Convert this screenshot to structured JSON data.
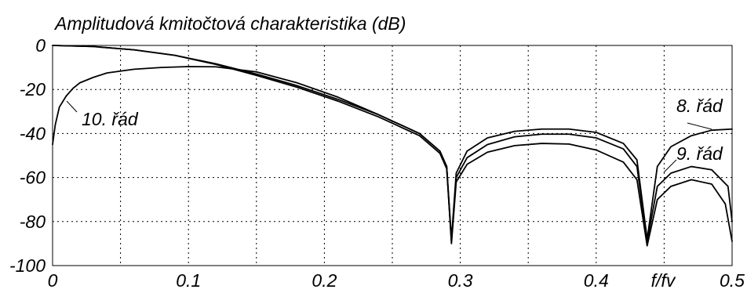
{
  "chart_data": {
    "type": "line",
    "title": "Amplitudová kmitočtová charakteristika (dB)",
    "xlabel": "f/fv",
    "ylabel": "",
    "xlim": [
      0,
      0.5
    ],
    "ylim": [
      -100,
      0
    ],
    "grid": true,
    "x_ticks": [
      0,
      0.1,
      0.2,
      0.3,
      0.4,
      0.5
    ],
    "x_tick_labels": [
      "0",
      "0.1",
      "0.2",
      "0.3",
      "0.4",
      "0.5"
    ],
    "y_ticks": [
      0,
      -20,
      -40,
      -60,
      -80,
      -100
    ],
    "y_tick_labels": [
      "0",
      "-20",
      "-40",
      "-60",
      "-80",
      "-100"
    ],
    "grid_x": [
      0.05,
      0.1,
      0.15,
      0.2,
      0.25,
      0.3,
      0.35,
      0.4,
      0.45
    ],
    "grid_y": [
      -20,
      -40,
      -60,
      -80
    ],
    "series": [
      {
        "name": "8. řád",
        "x": [
          0,
          0.03,
          0.06,
          0.09,
          0.12,
          0.15,
          0.18,
          0.21,
          0.24,
          0.27,
          0.285,
          0.29,
          0.2935,
          0.297,
          0.305,
          0.32,
          0.34,
          0.36,
          0.38,
          0.4,
          0.42,
          0.43,
          0.4375,
          0.445,
          0.455,
          0.47,
          0.485,
          0.5
        ],
        "y": [
          0,
          -0.5,
          -2,
          -4.5,
          -8.3,
          -13,
          -18.3,
          -24.5,
          -31.5,
          -40,
          -48,
          -55,
          -88,
          -58,
          -48,
          -42,
          -39,
          -38,
          -38,
          -39.5,
          -44.5,
          -52,
          -88,
          -55,
          -46,
          -41,
          -38.5,
          -38
        ]
      },
      {
        "name": "9. řád",
        "x": [
          0,
          0.03,
          0.06,
          0.09,
          0.12,
          0.15,
          0.18,
          0.21,
          0.24,
          0.27,
          0.285,
          0.29,
          0.2935,
          0.297,
          0.305,
          0.32,
          0.34,
          0.36,
          0.38,
          0.4,
          0.42,
          0.43,
          0.4375,
          0.445,
          0.455,
          0.47,
          0.485,
          0.497,
          0.5
        ],
        "y": [
          0,
          -0.5,
          -2,
          -4.5,
          -8.6,
          -13.6,
          -19,
          -25.3,
          -32.5,
          -41,
          -49,
          -56,
          -89,
          -60,
          -51,
          -45,
          -41.5,
          -40.3,
          -40.3,
          -42,
          -47,
          -55,
          -89,
          -64,
          -58,
          -55,
          -56.5,
          -64,
          -80
        ]
      },
      {
        "name": "10. řád",
        "x": [
          0,
          0.002,
          0.005,
          0.01,
          0.015,
          0.02,
          0.03,
          0.04,
          0.06,
          0.08,
          0.1,
          0.12,
          0.15,
          0.18,
          0.21,
          0.24,
          0.27,
          0.285,
          0.29,
          0.2935,
          0.297,
          0.305,
          0.32,
          0.34,
          0.36,
          0.38,
          0.4,
          0.42,
          0.43,
          0.4375,
          0.445,
          0.455,
          0.47,
          0.485,
          0.495,
          0.5
        ],
        "y": [
          -45,
          -36,
          -28,
          -23,
          -19.5,
          -17,
          -14.5,
          -12.5,
          -10.8,
          -10,
          -9.6,
          -9.7,
          -12,
          -17,
          -23.5,
          -31.5,
          -40,
          -48,
          -55,
          -90,
          -62,
          -54,
          -48.5,
          -45.5,
          -44.5,
          -44.8,
          -47.5,
          -53,
          -61,
          -91,
          -70,
          -64,
          -61,
          -63,
          -72,
          -89
        ]
      }
    ],
    "annotations": [
      "10. řád",
      "8. řád",
      "9. řád"
    ]
  },
  "colors": {
    "background": "#ffffff",
    "line": "#000000",
    "grid": "#000000"
  }
}
